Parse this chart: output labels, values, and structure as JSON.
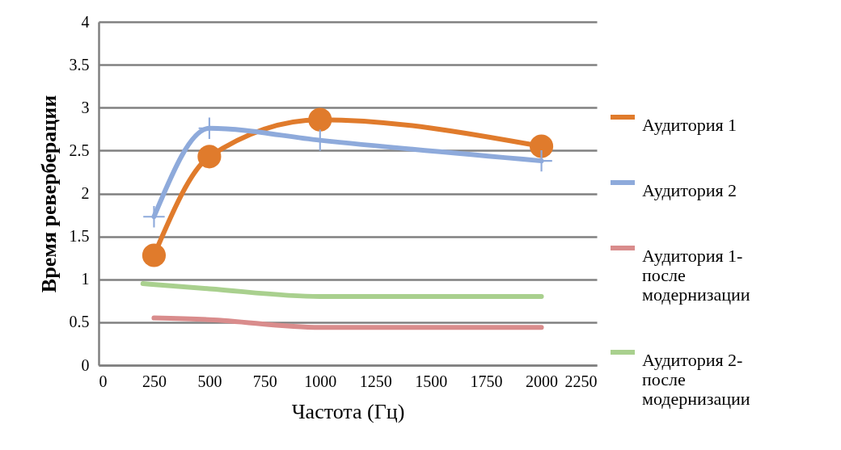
{
  "chart_data": {
    "type": "line",
    "xlabel": "Частота (Гц)",
    "ylabel": "Время реверберации",
    "x": [
      250,
      500,
      1000,
      2000
    ],
    "series": [
      {
        "name": "Аудитория 1",
        "color": "#e07b2c",
        "marker": "circle",
        "values": [
          1.28,
          2.43,
          2.86,
          2.55
        ]
      },
      {
        "name": "Аудитория 2",
        "color": "#8eaadb",
        "marker": "cross",
        "values": [
          1.73,
          2.76,
          2.62,
          2.38
        ]
      },
      {
        "name": "Аудитория 1- после модернизации",
        "color": "#d98c8c",
        "marker": "none",
        "values": [
          0.55,
          0.53,
          0.44,
          0.44
        ]
      },
      {
        "name": "Аудитория 2- после модернизации",
        "color": "#a9d08e",
        "marker": "none",
        "x": [
          200,
          500,
          1000,
          2000
        ],
        "values": [
          0.95,
          0.89,
          0.8,
          0.8
        ]
      }
    ],
    "xlim": [
      0,
      2250
    ],
    "xticks": [
      0,
      250,
      500,
      750,
      1000,
      1250,
      1500,
      1750,
      2000,
      2250
    ],
    "ylim": [
      0,
      4
    ],
    "yticks": [
      0,
      0.5,
      1,
      1.5,
      2,
      2.5,
      3,
      3.5,
      4
    ],
    "grid": "y",
    "legend": "right"
  }
}
